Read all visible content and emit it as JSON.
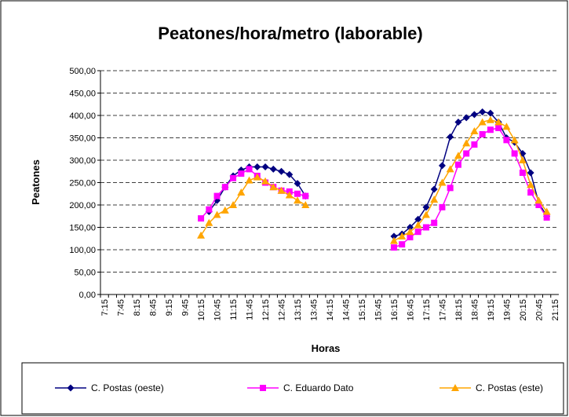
{
  "chart_data": {
    "type": "line",
    "title": "Peatones/hora/metro (laborable)",
    "x_label": "Horas",
    "y_label": "Peatones",
    "categories": [
      "7:15",
      null,
      "7:45",
      null,
      "8:15",
      null,
      "8:45",
      null,
      "9:15",
      null,
      "9:45",
      null,
      "10:15",
      null,
      "10:45",
      null,
      "11:15",
      null,
      "11:45",
      null,
      "12:15",
      null,
      "12:45",
      null,
      "13:15",
      null,
      "13:45",
      null,
      "14:15",
      null,
      "14:45",
      null,
      "15:15",
      null,
      "15:45",
      null,
      "16:15",
      null,
      "16:45",
      null,
      "17:15",
      null,
      "17:45",
      null,
      "18:15",
      null,
      "18:45",
      null,
      "19:15",
      null,
      "19:45",
      null,
      "20:15",
      null,
      "20:45",
      null,
      "21:15"
    ],
    "series": [
      {
        "name": "C. Postas (oeste)",
        "color": "#000080",
        "marker": "diamond",
        "values": [
          null,
          null,
          null,
          null,
          null,
          null,
          null,
          null,
          null,
          null,
          null,
          null,
          null,
          185,
          210,
          240,
          265,
          278,
          285,
          285,
          285,
          280,
          275,
          268,
          248,
          220,
          null,
          null,
          null,
          null,
          null,
          null,
          null,
          null,
          null,
          null,
          130,
          135,
          150,
          168,
          195,
          235,
          288,
          352,
          385,
          395,
          402,
          408,
          405,
          385,
          350,
          340,
          315,
          272,
          205,
          175,
          null
        ]
      },
      {
        "name": "C. Eduardo Dato",
        "color": "#ff00ff",
        "marker": "square",
        "values": [
          null,
          null,
          null,
          null,
          null,
          null,
          null,
          null,
          null,
          null,
          null,
          null,
          170,
          190,
          220,
          240,
          260,
          270,
          280,
          265,
          250,
          240,
          232,
          230,
          225,
          220,
          null,
          null,
          null,
          null,
          null,
          null,
          null,
          null,
          null,
          null,
          105,
          112,
          128,
          140,
          150,
          160,
          195,
          238,
          290,
          315,
          335,
          358,
          368,
          372,
          345,
          315,
          272,
          228,
          200,
          172,
          null
        ]
      },
      {
        "name": "C. Postas (este)",
        "color": "#ffa500",
        "marker": "triangle",
        "values": [
          null,
          null,
          null,
          null,
          null,
          null,
          null,
          null,
          null,
          null,
          null,
          null,
          132,
          160,
          178,
          188,
          200,
          228,
          255,
          262,
          253,
          240,
          232,
          222,
          210,
          200,
          null,
          null,
          null,
          null,
          null,
          null,
          null,
          null,
          null,
          null,
          120,
          130,
          140,
          155,
          178,
          212,
          250,
          280,
          310,
          338,
          365,
          385,
          390,
          385,
          375,
          345,
          300,
          245,
          210,
          185,
          null
        ]
      }
    ],
    "ylim": [
      0,
      500
    ],
    "yticks": [
      {
        "value": 0,
        "label": "0,00"
      },
      {
        "value": 50,
        "label": "50,00"
      },
      {
        "value": 100,
        "label": "100,00"
      },
      {
        "value": 150,
        "label": "150,00"
      },
      {
        "value": 200,
        "label": "200,00"
      },
      {
        "value": 250,
        "label": "250,00"
      },
      {
        "value": 300,
        "label": "300,00"
      },
      {
        "value": 350,
        "label": "350,00"
      },
      {
        "value": 400,
        "label": "400,00"
      },
      {
        "value": 450,
        "label": "450,00"
      },
      {
        "value": 500,
        "label": "500,00"
      }
    ],
    "grid": true
  }
}
